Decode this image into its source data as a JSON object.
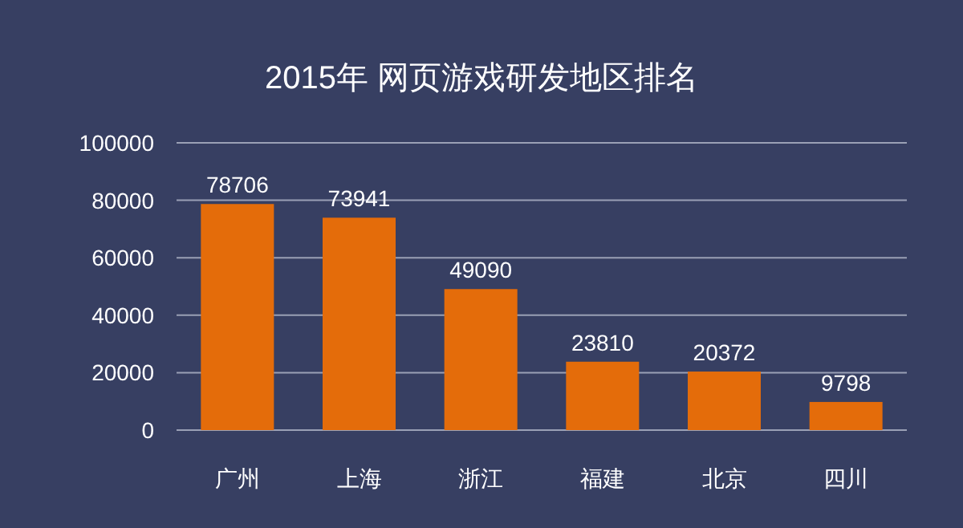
{
  "chart_data": {
    "type": "bar",
    "title": "2015年 网页游戏研发地区排名",
    "categories": [
      "广州",
      "上海",
      "浙江",
      "福建",
      "北京",
      "四川"
    ],
    "values": [
      78706,
      73941,
      49090,
      23810,
      20372,
      9798
    ],
    "color": "#e46c0a",
    "ylim": [
      0,
      100000
    ],
    "yticks": [
      0,
      20000,
      40000,
      60000,
      80000,
      100000
    ],
    "grid": "y",
    "data_labels": true
  }
}
